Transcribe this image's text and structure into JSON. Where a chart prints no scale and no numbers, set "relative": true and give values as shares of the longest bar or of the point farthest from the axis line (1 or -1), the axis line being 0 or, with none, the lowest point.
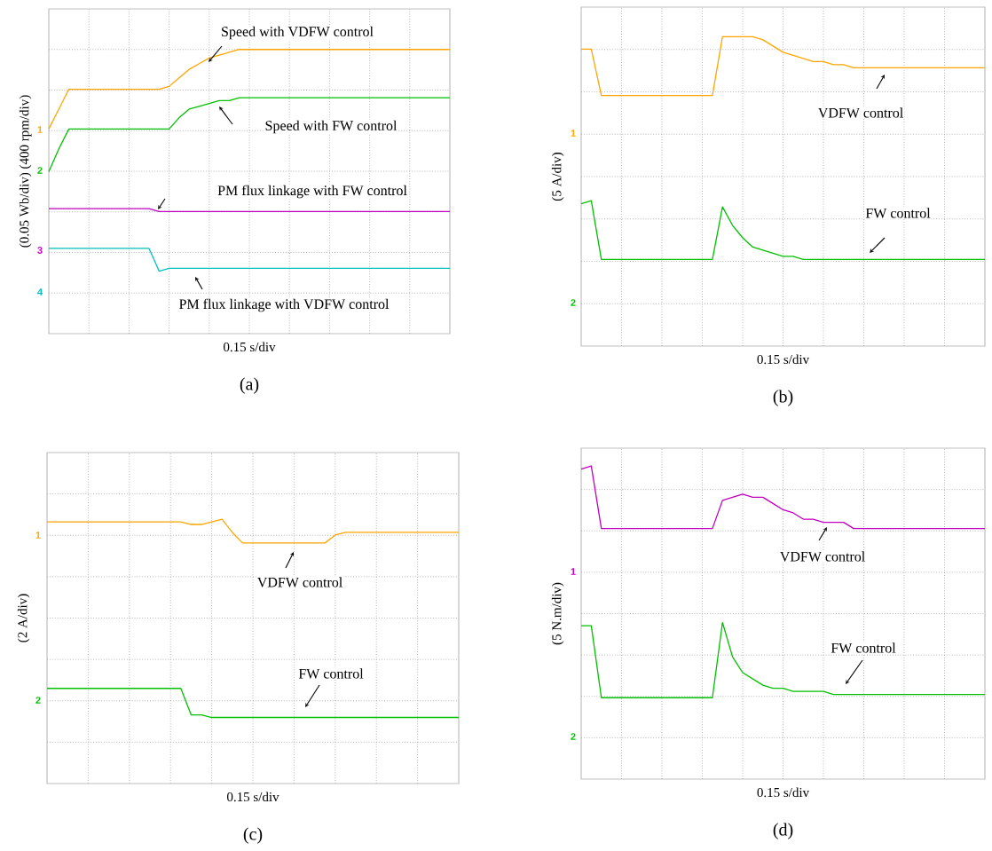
{
  "chart_data": [
    {
      "type": "line",
      "title": "(a)",
      "xlabel": "0.15 s/div",
      "ylabel": "(0.05 Wb/div) (400 rpm/div)",
      "relative": true,
      "grid": true,
      "categories": [
        null,
        null,
        null,
        null,
        null,
        null,
        null,
        null,
        null,
        null,
        null,
        null,
        null,
        null,
        null,
        null,
        null,
        null,
        null,
        null,
        null,
        null,
        null,
        null,
        null,
        null,
        null,
        null,
        null,
        null,
        null,
        null,
        null,
        null,
        null,
        null,
        null,
        null,
        null,
        null,
        null
      ],
      "series": [
        {
          "color": "#ffa500",
          "values": [
            0.72,
            0.79,
            0.86,
            0.86,
            0.86,
            0.86,
            0.86,
            0.86,
            0.86,
            0.86,
            0.86,
            0.86,
            0.87,
            0.9,
            0.93,
            0.95,
            0.97,
            0.98,
            0.99,
            1,
            1,
            1,
            1,
            1,
            1,
            1,
            1,
            1,
            1,
            1,
            1,
            1,
            1,
            1,
            1,
            1,
            1,
            1,
            1,
            1,
            1
          ]
        },
        {
          "color": "#00c000",
          "values": [
            0.57,
            0.65,
            0.72,
            0.72,
            0.72,
            0.72,
            0.72,
            0.72,
            0.72,
            0.72,
            0.72,
            0.72,
            0.72,
            0.76,
            0.79,
            0.8,
            0.81,
            0.82,
            0.82,
            0.83,
            0.83,
            0.83,
            0.83,
            0.83,
            0.83,
            0.83,
            0.83,
            0.83,
            0.83,
            0.83,
            0.83,
            0.83,
            0.83,
            0.83,
            0.83,
            0.83,
            0.83,
            0.83,
            0.83,
            0.83,
            0.83
          ]
        },
        {
          "color": "#c000c0",
          "values": [
            0.44,
            0.44,
            0.44,
            0.44,
            0.44,
            0.44,
            0.44,
            0.44,
            0.44,
            0.44,
            0.44,
            0.43,
            0.43,
            0.43,
            0.43,
            0.43,
            0.43,
            0.43,
            0.43,
            0.43,
            0.43,
            0.43,
            0.43,
            0.43,
            0.43,
            0.43,
            0.43,
            0.43,
            0.43,
            0.43,
            0.43,
            0.43,
            0.43,
            0.43,
            0.43,
            0.43,
            0.43,
            0.43,
            0.43,
            0.43,
            0.43
          ]
        },
        {
          "color": "#00c0c0",
          "values": [
            0.3,
            0.3,
            0.3,
            0.3,
            0.3,
            0.3,
            0.3,
            0.3,
            0.3,
            0.3,
            0.3,
            0.22,
            0.23,
            0.23,
            0.23,
            0.23,
            0.23,
            0.23,
            0.23,
            0.23,
            0.23,
            0.23,
            0.23,
            0.23,
            0.23,
            0.23,
            0.23,
            0.23,
            0.23,
            0.23,
            0.23,
            0.23,
            0.23,
            0.23,
            0.23,
            0.23,
            0.23,
            0.23,
            0.23,
            0.23,
            0.23
          ]
        }
      ],
      "annotations": [
        "Speed with VDFW control",
        "Speed with FW control",
        "PM flux linkage with FW control",
        "PM flux linkage with VDFW control",
        "1",
        "2",
        "3",
        "4"
      ]
    },
    {
      "type": "line",
      "title": "(b)",
      "xlabel": "0.15 s/div",
      "ylabel": "(5 A/div)",
      "relative": true,
      "grid": true,
      "categories": [
        null,
        null,
        null,
        null,
        null,
        null,
        null,
        null,
        null,
        null,
        null,
        null,
        null,
        null,
        null,
        null,
        null,
        null,
        null,
        null,
        null,
        null,
        null,
        null,
        null,
        null,
        null,
        null,
        null,
        null,
        null,
        null,
        null,
        null,
        null,
        null,
        null,
        null,
        null,
        null,
        null
      ],
      "series": [
        {
          "color": "#ffa500",
          "values": [
            0.96,
            0.96,
            0.81,
            0.81,
            0.81,
            0.81,
            0.81,
            0.81,
            0.81,
            0.81,
            0.81,
            0.81,
            0.81,
            0.81,
            1,
            1,
            1,
            1,
            0.99,
            0.97,
            0.95,
            0.94,
            0.93,
            0.92,
            0.92,
            0.91,
            0.91,
            0.9,
            0.9,
            0.9,
            0.9,
            0.9,
            0.9,
            0.9,
            0.9,
            0.9,
            0.9,
            0.9,
            0.9,
            0.9,
            0.9
          ]
        },
        {
          "color": "#00c000",
          "values": [
            0.46,
            0.47,
            0.28,
            0.28,
            0.28,
            0.28,
            0.28,
            0.28,
            0.28,
            0.28,
            0.28,
            0.28,
            0.28,
            0.28,
            0.45,
            0.39,
            0.35,
            0.32,
            0.31,
            0.3,
            0.29,
            0.29,
            0.28,
            0.28,
            0.28,
            0.28,
            0.28,
            0.28,
            0.28,
            0.28,
            0.28,
            0.28,
            0.28,
            0.28,
            0.28,
            0.28,
            0.28,
            0.28,
            0.28,
            0.28,
            0.28
          ]
        }
      ],
      "annotations": [
        "VDFW control",
        "FW control",
        "1",
        "2"
      ]
    },
    {
      "type": "line",
      "title": "(c)",
      "xlabel": "0.15 s/div",
      "ylabel": "(2 A/div)",
      "relative": true,
      "grid": true,
      "categories": [
        null,
        null,
        null,
        null,
        null,
        null,
        null,
        null,
        null,
        null,
        null,
        null,
        null,
        null,
        null,
        null,
        null,
        null,
        null,
        null,
        null,
        null,
        null,
        null,
        null,
        null,
        null,
        null,
        null,
        null,
        null,
        null,
        null,
        null,
        null,
        null,
        null,
        null,
        null,
        null,
        null
      ],
      "series": [
        {
          "color": "#ffa500",
          "values": [
            0.99,
            0.99,
            0.99,
            0.99,
            0.99,
            0.99,
            0.99,
            0.99,
            0.99,
            0.99,
            0.99,
            0.99,
            0.99,
            0.99,
            0.98,
            0.98,
            0.99,
            1,
            0.95,
            0.91,
            0.91,
            0.91,
            0.91,
            0.91,
            0.91,
            0.91,
            0.91,
            0.91,
            0.94,
            0.95,
            0.95,
            0.95,
            0.95,
            0.95,
            0.95,
            0.95,
            0.95,
            0.95,
            0.95,
            0.95,
            0.95
          ]
        },
        {
          "color": "#00c000",
          "values": [
            0.36,
            0.36,
            0.36,
            0.36,
            0.36,
            0.36,
            0.36,
            0.36,
            0.36,
            0.36,
            0.36,
            0.36,
            0.36,
            0.36,
            0.26,
            0.26,
            0.25,
            0.25,
            0.25,
            0.25,
            0.25,
            0.25,
            0.25,
            0.25,
            0.25,
            0.25,
            0.25,
            0.25,
            0.25,
            0.25,
            0.25,
            0.25,
            0.25,
            0.25,
            0.25,
            0.25,
            0.25,
            0.25,
            0.25,
            0.25,
            0.25
          ]
        }
      ],
      "annotations": [
        "VDFW control",
        "FW control",
        "1",
        "2"
      ]
    },
    {
      "type": "line",
      "title": "(d)",
      "xlabel": "0.15 s/div",
      "ylabel": "(5 N.m/div)",
      "relative": true,
      "grid": true,
      "categories": [
        null,
        null,
        null,
        null,
        null,
        null,
        null,
        null,
        null,
        null,
        null,
        null,
        null,
        null,
        null,
        null,
        null,
        null,
        null,
        null,
        null,
        null,
        null,
        null,
        null,
        null,
        null,
        null,
        null,
        null,
        null,
        null,
        null,
        null,
        null,
        null,
        null,
        null,
        null,
        null,
        null
      ],
      "series": [
        {
          "color": "#c000c0",
          "values": [
            0.99,
            1,
            0.8,
            0.8,
            0.8,
            0.8,
            0.8,
            0.8,
            0.8,
            0.8,
            0.8,
            0.8,
            0.8,
            0.8,
            0.89,
            0.9,
            0.91,
            0.9,
            0.9,
            0.88,
            0.86,
            0.85,
            0.83,
            0.83,
            0.82,
            0.82,
            0.82,
            0.8,
            0.8,
            0.8,
            0.8,
            0.8,
            0.8,
            0.8,
            0.8,
            0.8,
            0.8,
            0.8,
            0.8,
            0.8,
            0.8
          ]
        },
        {
          "color": "#00c000",
          "values": [
            0.49,
            0.49,
            0.26,
            0.26,
            0.26,
            0.26,
            0.26,
            0.26,
            0.26,
            0.26,
            0.26,
            0.26,
            0.26,
            0.26,
            0.5,
            0.39,
            0.34,
            0.32,
            0.3,
            0.29,
            0.29,
            0.28,
            0.28,
            0.28,
            0.28,
            0.27,
            0.27,
            0.27,
            0.27,
            0.27,
            0.27,
            0.27,
            0.27,
            0.27,
            0.27,
            0.27,
            0.27,
            0.27,
            0.27,
            0.27,
            0.27
          ]
        }
      ],
      "annotations": [
        "VDFW control",
        "FW control",
        "1",
        "2"
      ]
    }
  ]
}
